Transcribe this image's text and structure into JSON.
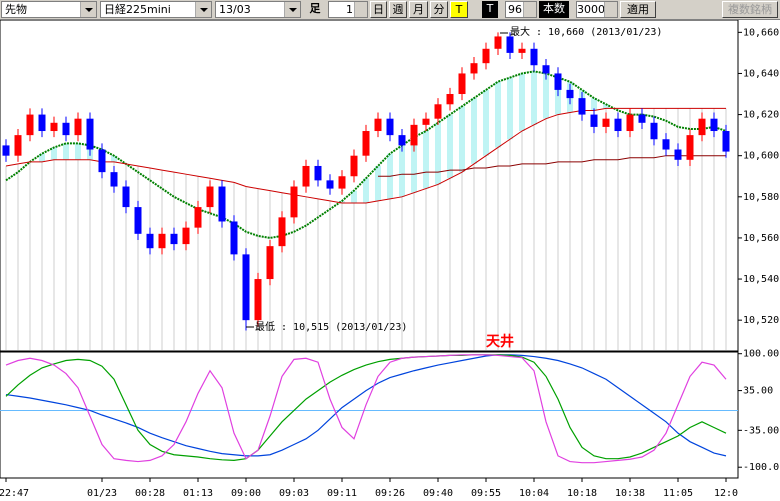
{
  "toolbar": {
    "market": "先物",
    "symbol": "日経225mini",
    "contract": "13/03",
    "bar_label": "足",
    "bar_size": 1,
    "periods": [
      "日",
      "週",
      "月",
      "分",
      "T"
    ],
    "tick_mode": "T",
    "count": 96,
    "count_label": "本数",
    "max_bars": 3000,
    "apply": "適用",
    "multi_symbol": "複数銘柄"
  },
  "chart_data": [
    {
      "type": "candlestick",
      "open": [
        10605,
        10600,
        10610,
        10620,
        10612,
        10616,
        10610,
        10618,
        10603,
        10592,
        10585,
        10575,
        10562,
        10555,
        10562,
        10557,
        10565,
        10575,
        10585,
        10568,
        10552,
        10520,
        10540,
        10556,
        10570,
        10585,
        10595,
        10588,
        10584,
        10590,
        10600,
        10612,
        10618,
        10610,
        10605,
        10615,
        10618,
        10625,
        10630,
        10640,
        10645,
        10652,
        10658,
        10650,
        10652,
        10644,
        10640,
        10632,
        10628,
        10620,
        10614,
        10618,
        10612,
        10620,
        10616,
        10608,
        10603,
        10598,
        10610,
        10618,
        10612
      ],
      "high": [
        10608,
        10613,
        10623,
        10623,
        10619,
        10619,
        10621,
        10621,
        10606,
        10595,
        10588,
        10578,
        10565,
        10565,
        10565,
        10568,
        10578,
        10588,
        10588,
        10571,
        10555,
        10543,
        10559,
        10573,
        10588,
        10598,
        10598,
        10591,
        10593,
        10603,
        10615,
        10621,
        10621,
        10613,
        10618,
        10621,
        10628,
        10633,
        10643,
        10648,
        10655,
        10660,
        10660,
        10655,
        10655,
        10647,
        10643,
        10635,
        10631,
        10623,
        10621,
        10621,
        10623,
        10623,
        10619,
        10611,
        10606,
        10613,
        10621,
        10621,
        10615
      ],
      "low": [
        10597,
        10597,
        10607,
        10609,
        10609,
        10607,
        10607,
        10600,
        10589,
        10582,
        10572,
        10559,
        10552,
        10552,
        10554,
        10554,
        10562,
        10572,
        10565,
        10549,
        10515,
        10517,
        10537,
        10553,
        10567,
        10582,
        10585,
        10581,
        10581,
        10587,
        10597,
        10609,
        10607,
        10602,
        10602,
        10612,
        10615,
        10622,
        10627,
        10637,
        10642,
        10649,
        10647,
        10647,
        10641,
        10637,
        10629,
        10625,
        10617,
        10611,
        10611,
        10609,
        10609,
        10613,
        10605,
        10600,
        10595,
        10595,
        10607,
        10609,
        10599
      ],
      "close": [
        10600,
        10610,
        10620,
        10612,
        10616,
        10610,
        10618,
        10603,
        10592,
        10585,
        10575,
        10562,
        10555,
        10562,
        10557,
        10565,
        10575,
        10585,
        10568,
        10552,
        10520,
        10540,
        10556,
        10570,
        10585,
        10595,
        10588,
        10584,
        10590,
        10600,
        10612,
        10618,
        10610,
        10605,
        10615,
        10618,
        10625,
        10630,
        10640,
        10645,
        10652,
        10658,
        10650,
        10652,
        10644,
        10640,
        10632,
        10628,
        10620,
        10614,
        10618,
        10612,
        10620,
        10616,
        10608,
        10603,
        10598,
        10610,
        10618,
        10612,
        10602
      ],
      "up_color": "#ff0000",
      "down_color": "#0000ff",
      "series": [
        {
          "color": "#008000",
          "style": "dotted",
          "values": [
            10588,
            10592,
            10597,
            10601,
            10604,
            10606,
            10606,
            10605,
            10603,
            10600,
            10596,
            10592,
            10588,
            10584,
            10580,
            10577,
            10574,
            10572,
            10570,
            10567,
            10563,
            10561,
            10560,
            10561,
            10563,
            10566,
            10570,
            10574,
            10578,
            10583,
            10589,
            10595,
            10601,
            10605,
            10609,
            10612,
            10616,
            10620,
            10624,
            10628,
            10632,
            10636,
            10638,
            10640,
            10641,
            10640,
            10638,
            10636,
            10632,
            10628,
            10625,
            10622,
            10620,
            10620,
            10619,
            10617,
            10614,
            10613,
            10613,
            10614,
            10612
          ]
        },
        {
          "color": "#cc0000",
          "style": "solid",
          "values": [
            10595,
            10596,
            10597,
            10597,
            10598,
            10598,
            10598,
            10598,
            10597,
            10597,
            10596,
            10595,
            10594,
            10593,
            10592,
            10591,
            10590,
            10589,
            10588,
            10587,
            10585,
            10584,
            10583,
            10582,
            10581,
            10580,
            10579,
            10578,
            10577,
            10577,
            10577,
            10578,
            10579,
            10580,
            10582,
            10584,
            10586,
            10589,
            10592,
            10596,
            10600,
            10604,
            10608,
            10612,
            10615,
            10618,
            10620,
            10621,
            10622,
            10622,
            10623,
            10623,
            10623,
            10623,
            10623,
            10623,
            10623,
            10623,
            10623,
            10623,
            10623
          ]
        },
        {
          "color": "#8b0000",
          "style": "solid",
          "values": [
            null,
            null,
            null,
            null,
            null,
            null,
            null,
            null,
            null,
            null,
            null,
            null,
            null,
            null,
            null,
            null,
            null,
            null,
            null,
            null,
            null,
            null,
            null,
            null,
            null,
            null,
            null,
            null,
            null,
            null,
            null,
            10590,
            10590,
            10591,
            10591,
            10592,
            10592,
            10593,
            10593,
            10594,
            10594,
            10595,
            10595,
            10596,
            10596,
            10596,
            10597,
            10597,
            10597,
            10598,
            10598,
            10598,
            10599,
            10599,
            10599,
            10600,
            10600,
            10600,
            10600,
            10600,
            10600
          ]
        }
      ],
      "ylim": [
        10505,
        10666
      ],
      "yticks": [
        {
          "value": 10520,
          "label": "10,520"
        },
        {
          "value": 10540,
          "label": "10,540"
        },
        {
          "value": 10560,
          "label": "10,560"
        },
        {
          "value": 10580,
          "label": "10,580"
        },
        {
          "value": 10600,
          "label": "10,600"
        },
        {
          "value": 10620,
          "label": "10,620"
        },
        {
          "value": 10640,
          "label": "10,640"
        },
        {
          "value": 10660,
          "label": "10,660"
        }
      ],
      "annotations": [
        "最大 : 10,660 (2013/01/23)",
        "最低 : 10,515 (2013/01/23)"
      ]
    },
    {
      "type": "line",
      "categories": [
        "22:47",
        null,
        null,
        null,
        null,
        null,
        null,
        null,
        "01/23",
        null,
        null,
        null,
        "00:28",
        null,
        null,
        null,
        "01:13",
        null,
        null,
        null,
        "09:00",
        null,
        null,
        null,
        "09:03",
        null,
        null,
        null,
        "09:11",
        null,
        null,
        null,
        "09:26",
        null,
        null,
        null,
        "09:40",
        null,
        null,
        null,
        "09:55",
        null,
        null,
        null,
        "10:04",
        null,
        null,
        null,
        "10:18",
        null,
        null,
        null,
        "10:38",
        null,
        null,
        null,
        "11:05",
        null,
        null,
        null,
        "12:0"
      ],
      "series": [
        {
          "color": "#0044dd",
          "values": [
            28,
            25,
            22,
            18,
            14,
            10,
            5,
            0,
            -8,
            -15,
            -22,
            -30,
            -40,
            -48,
            -55,
            -62,
            -67,
            -72,
            -76,
            -78,
            -80,
            -80,
            -78,
            -70,
            -60,
            -50,
            -35,
            -15,
            5,
            20,
            35,
            48,
            58,
            64,
            70,
            75,
            80,
            84,
            88,
            92,
            96,
            98,
            98,
            97,
            95,
            92,
            88,
            82,
            75,
            65,
            55,
            40,
            25,
            10,
            -5,
            -20,
            -40,
            -55,
            -65,
            -75,
            -80
          ]
        },
        {
          "color": "#00a000",
          "values": [
            25,
            45,
            62,
            75,
            82,
            88,
            90,
            88,
            78,
            55,
            10,
            -35,
            -60,
            -72,
            -78,
            -80,
            -82,
            -85,
            -87,
            -88,
            -85,
            -70,
            -45,
            -20,
            0,
            20,
            35,
            50,
            62,
            72,
            80,
            86,
            90,
            92,
            94,
            95,
            96,
            97,
            97,
            98,
            98,
            98,
            97,
            94,
            85,
            60,
            20,
            -30,
            -65,
            -80,
            -85,
            -85,
            -82,
            -75,
            -65,
            -55,
            -45,
            -30,
            -20,
            -30,
            -40
          ]
        },
        {
          "color": "#e040e0",
          "values": [
            80,
            88,
            92,
            88,
            80,
            65,
            40,
            -10,
            -60,
            -85,
            -88,
            -90,
            -88,
            -80,
            -60,
            -20,
            30,
            70,
            40,
            -40,
            -85,
            -70,
            -10,
            60,
            90,
            92,
            85,
            20,
            -30,
            -50,
            10,
            60,
            85,
            92,
            94,
            95,
            96,
            97,
            98,
            98,
            98,
            97,
            95,
            93,
            70,
            -20,
            -80,
            -90,
            -92,
            -92,
            -90,
            -88,
            -86,
            -82,
            -70,
            -40,
            10,
            60,
            85,
            80,
            55
          ]
        }
      ],
      "hline": 0,
      "hline_color": "#66bbff",
      "ylim": [
        -119,
        103
      ],
      "yticks": [
        {
          "value": 100,
          "label": "100.00"
        },
        {
          "value": 35,
          "label": "35.00"
        },
        {
          "value": -35,
          "label": "-35.00"
        },
        {
          "value": -100,
          "label": "-100.0"
        }
      ],
      "annotations": [
        "天井"
      ]
    }
  ]
}
